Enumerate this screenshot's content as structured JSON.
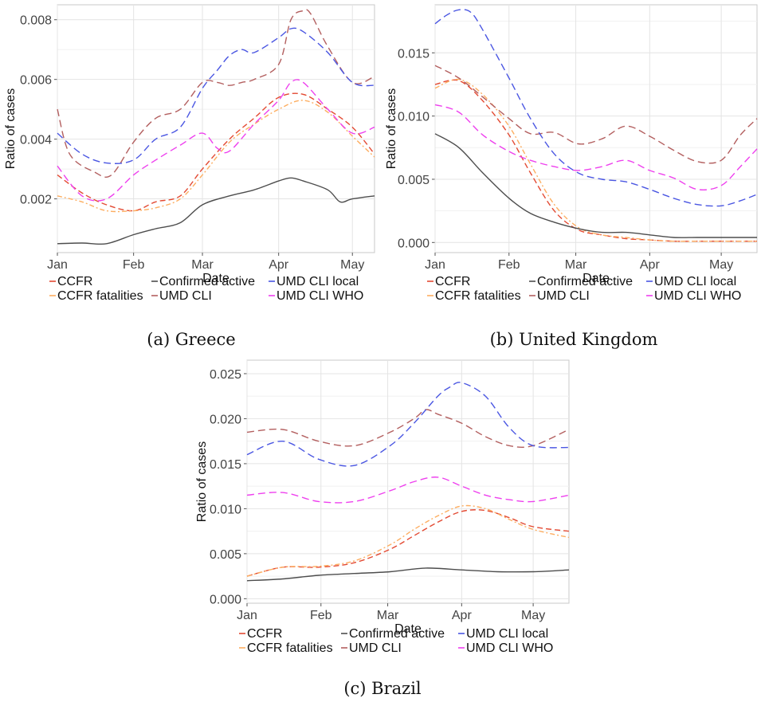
{
  "series_styles": [
    {
      "key": "CCFR",
      "color": "#e34a33",
      "dash": "7,4"
    },
    {
      "key": "CCFR fatalities",
      "color": "#fdae61",
      "dash": "6,3,2,3"
    },
    {
      "key": "Confirmed active",
      "color": "#4d4d4d",
      "dash": ""
    },
    {
      "key": "UMD CLI",
      "color": "#b35f5f",
      "dash": "9,5"
    },
    {
      "key": "UMD CLI local",
      "color": "#4a56e2",
      "dash": "9,5"
    },
    {
      "key": "UMD CLI WHO",
      "color": "#ee40ee",
      "dash": "9,5"
    }
  ],
  "legend_rows": [
    [
      "CCFR",
      "Confirmed active",
      "UMD CLI local"
    ],
    [
      "CCFR fatalities",
      "UMD CLI",
      "UMD CLI WHO"
    ]
  ],
  "captions": [
    "(a) Greece",
    "(b) United Kingdom",
    "(c) Brazil"
  ],
  "chart_data": [
    {
      "type": "line",
      "xlabel": "Date",
      "ylabel": "Ratio of cases",
      "x_ticks": [
        "Jan",
        "Feb",
        "Mar",
        "Apr",
        "May"
      ],
      "xlim": [
        0,
        129
      ],
      "y_ticks": [
        0.002,
        0.004,
        0.006,
        0.008
      ],
      "ylim": [
        0.0002,
        0.0085
      ],
      "grid": true,
      "legend_position": "bottom",
      "series": [
        {
          "name": "CCFR",
          "x": [
            0,
            10,
            20,
            31,
            40,
            50,
            59,
            70,
            80,
            90,
            100,
            110,
            120,
            129
          ],
          "values": [
            0.0028,
            0.0022,
            0.0018,
            0.0016,
            0.0019,
            0.0021,
            0.003,
            0.004,
            0.0047,
            0.0054,
            0.0055,
            0.005,
            0.0044,
            0.0035
          ]
        },
        {
          "name": "CCFR fatalities",
          "x": [
            0,
            10,
            20,
            31,
            40,
            50,
            59,
            70,
            80,
            90,
            100,
            110,
            120,
            129
          ],
          "values": [
            0.0021,
            0.0019,
            0.0016,
            0.0016,
            0.0017,
            0.002,
            0.0028,
            0.0039,
            0.0045,
            0.005,
            0.0053,
            0.0049,
            0.0041,
            0.0034
          ]
        },
        {
          "name": "Confirmed active",
          "x": [
            0,
            10,
            20,
            31,
            40,
            50,
            59,
            70,
            80,
            90,
            95,
            100,
            110,
            115,
            120,
            129
          ],
          "values": [
            0.0005,
            0.00052,
            0.0005,
            0.0008,
            0.001,
            0.0012,
            0.0018,
            0.0021,
            0.0023,
            0.0026,
            0.0027,
            0.0026,
            0.0023,
            0.0019,
            0.002,
            0.0021
          ]
        },
        {
          "name": "UMD CLI",
          "x": [
            0,
            5,
            15,
            22,
            31,
            40,
            50,
            59,
            65,
            70,
            75,
            80,
            90,
            95,
            100,
            103,
            110,
            120,
            129
          ],
          "values": [
            0.005,
            0.0035,
            0.0029,
            0.0028,
            0.0039,
            0.0047,
            0.005,
            0.0059,
            0.0059,
            0.0058,
            0.0059,
            0.006,
            0.0065,
            0.008,
            0.0083,
            0.0082,
            0.0071,
            0.0059,
            0.0061
          ]
        },
        {
          "name": "UMD CLI local",
          "x": [
            0,
            10,
            20,
            31,
            40,
            50,
            59,
            65,
            70,
            75,
            80,
            90,
            95,
            100,
            110,
            120,
            129
          ],
          "values": [
            0.0042,
            0.0035,
            0.0032,
            0.0033,
            0.004,
            0.0044,
            0.0057,
            0.0063,
            0.0068,
            0.007,
            0.0069,
            0.0074,
            0.0077,
            0.0076,
            0.0069,
            0.0059,
            0.0058
          ]
        },
        {
          "name": "UMD CLI WHO",
          "x": [
            0,
            10,
            20,
            31,
            40,
            50,
            59,
            65,
            70,
            80,
            90,
            95,
            100,
            110,
            120,
            129
          ],
          "values": [
            0.0031,
            0.0021,
            0.002,
            0.0028,
            0.0033,
            0.0038,
            0.0042,
            0.0037,
            0.0036,
            0.0045,
            0.0053,
            0.0059,
            0.0059,
            0.005,
            0.0042,
            0.0044
          ]
        }
      ]
    },
    {
      "type": "line",
      "xlabel": "Date",
      "ylabel": "Ratio of cases",
      "x_ticks": [
        "Jan",
        "Feb",
        "Mar",
        "Apr",
        "May"
      ],
      "xlim": [
        0,
        135
      ],
      "y_ticks": [
        "0.000",
        "0.005",
        "0.010",
        "0.015"
      ],
      "ylim": [
        -0.0008,
        0.0188
      ],
      "grid": true,
      "legend_position": "bottom",
      "series": [
        {
          "name": "CCFR",
          "x": [
            0,
            10,
            20,
            31,
            40,
            50,
            60,
            70,
            80,
            90,
            100,
            110,
            120,
            135
          ],
          "values": [
            0.0125,
            0.0128,
            0.0112,
            0.0085,
            0.0055,
            0.0025,
            0.001,
            0.0006,
            0.0003,
            0.0002,
            0.0001,
            0.0001,
            0.0001,
            0.0001
          ]
        },
        {
          "name": "CCFR fatalities",
          "x": [
            0,
            10,
            20,
            31,
            40,
            50,
            60,
            70,
            80,
            90,
            100,
            110,
            120,
            135
          ],
          "values": [
            0.0122,
            0.0129,
            0.0117,
            0.0092,
            0.0062,
            0.003,
            0.0012,
            0.0006,
            0.0004,
            0.0002,
            0.0001,
            0.0001,
            0.0001,
            0.0001
          ]
        },
        {
          "name": "Confirmed active",
          "x": [
            0,
            10,
            20,
            31,
            40,
            50,
            60,
            70,
            80,
            90,
            100,
            110,
            120,
            135
          ],
          "values": [
            0.0086,
            0.0075,
            0.0055,
            0.0035,
            0.0023,
            0.0016,
            0.0011,
            0.0008,
            0.0008,
            0.0006,
            0.0004,
            0.0004,
            0.0004,
            0.0004
          ]
        },
        {
          "name": "UMD CLI",
          "x": [
            0,
            10,
            20,
            31,
            40,
            50,
            60,
            70,
            80,
            90,
            100,
            110,
            120,
            128,
            135
          ],
          "values": [
            0.014,
            0.013,
            0.0115,
            0.0098,
            0.0086,
            0.0087,
            0.0078,
            0.0082,
            0.0092,
            0.0084,
            0.0073,
            0.0064,
            0.0065,
            0.0085,
            0.0098
          ]
        },
        {
          "name": "UMD CLI local",
          "x": [
            0,
            5,
            10,
            15,
            20,
            31,
            40,
            50,
            60,
            70,
            80,
            90,
            100,
            110,
            120,
            128,
            135
          ],
          "values": [
            0.0173,
            0.018,
            0.0184,
            0.0182,
            0.0168,
            0.013,
            0.0098,
            0.007,
            0.0055,
            0.005,
            0.0048,
            0.0042,
            0.0035,
            0.003,
            0.0029,
            0.0033,
            0.0038
          ]
        },
        {
          "name": "UMD CLI WHO",
          "x": [
            0,
            10,
            20,
            31,
            40,
            50,
            60,
            70,
            80,
            90,
            100,
            110,
            120,
            128,
            135
          ],
          "values": [
            0.0109,
            0.0103,
            0.0085,
            0.0072,
            0.0065,
            0.006,
            0.0057,
            0.006,
            0.0065,
            0.0057,
            0.0051,
            0.0042,
            0.0045,
            0.006,
            0.0074
          ]
        }
      ]
    },
    {
      "type": "line",
      "xlabel": "Date",
      "ylabel": "Ratio of cases",
      "x_ticks": [
        "Jan",
        "Feb",
        "Mar",
        "Apr",
        "May"
      ],
      "xlim": [
        0,
        135
      ],
      "y_ticks": [
        "0.000",
        "0.005",
        "0.010",
        "0.015",
        "0.020",
        "0.025"
      ],
      "ylim": [
        -0.0005,
        0.0265
      ],
      "grid": true,
      "legend_position": "bottom",
      "series": [
        {
          "name": "CCFR",
          "x": [
            0,
            15,
            30,
            45,
            60,
            70,
            80,
            90,
            100,
            110,
            120,
            135
          ],
          "values": [
            0.0025,
            0.0035,
            0.0035,
            0.004,
            0.0055,
            0.007,
            0.0085,
            0.0097,
            0.0098,
            0.009,
            0.008,
            0.0075
          ]
        },
        {
          "name": "CCFR fatalities",
          "x": [
            0,
            15,
            30,
            45,
            60,
            70,
            80,
            90,
            100,
            110,
            120,
            135
          ],
          "values": [
            0.0025,
            0.0035,
            0.0036,
            0.0042,
            0.006,
            0.0077,
            0.0092,
            0.0103,
            0.01,
            0.0088,
            0.0077,
            0.0068
          ]
        },
        {
          "name": "Confirmed active",
          "x": [
            0,
            15,
            30,
            45,
            60,
            75,
            90,
            105,
            120,
            135
          ],
          "values": [
            0.002,
            0.0022,
            0.0026,
            0.0028,
            0.003,
            0.0034,
            0.0032,
            0.003,
            0.003,
            0.0032
          ]
        },
        {
          "name": "UMD CLI",
          "x": [
            0,
            15,
            30,
            45,
            60,
            70,
            75,
            80,
            90,
            100,
            110,
            120,
            135
          ],
          "values": [
            0.0185,
            0.0188,
            0.0175,
            0.017,
            0.0185,
            0.02,
            0.021,
            0.0205,
            0.0195,
            0.018,
            0.017,
            0.017,
            0.0188
          ]
        },
        {
          "name": "UMD CLI local",
          "x": [
            0,
            15,
            30,
            45,
            60,
            70,
            80,
            85,
            90,
            100,
            110,
            120,
            135
          ],
          "values": [
            0.016,
            0.0175,
            0.0155,
            0.0148,
            0.017,
            0.0195,
            0.0225,
            0.0235,
            0.024,
            0.0225,
            0.019,
            0.017,
            0.0168
          ]
        },
        {
          "name": "UMD CLI WHO",
          "x": [
            0,
            15,
            30,
            45,
            60,
            70,
            80,
            90,
            100,
            110,
            120,
            135
          ],
          "values": [
            0.0115,
            0.0118,
            0.0108,
            0.0108,
            0.012,
            0.013,
            0.0135,
            0.0125,
            0.0115,
            0.011,
            0.0108,
            0.0115
          ]
        }
      ]
    }
  ]
}
